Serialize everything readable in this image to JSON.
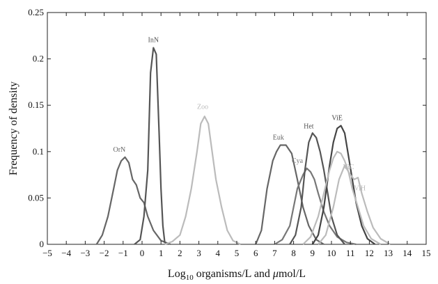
{
  "chart_data": {
    "type": "line",
    "xlabel_prefix": "Log",
    "xlabel_subscript": "10",
    "xlabel_suffix": " organisms/L and ",
    "xlabel_mu": "μ",
    "xlabel_unit": "mol/L",
    "ylabel": "Frequency of density",
    "xlim": [
      -5,
      15
    ],
    "ylim": [
      0,
      0.25
    ],
    "xticks": [
      -5,
      -4,
      -3,
      -2,
      -1,
      0,
      1,
      2,
      3,
      4,
      5,
      6,
      7,
      8,
      9,
      10,
      11,
      12,
      13,
      14,
      15
    ],
    "yticks": [
      0,
      0.05,
      0.1,
      0.15,
      0.2,
      0.25
    ],
    "ytick_labels": [
      "0",
      "0.05",
      "0.1",
      "0.15",
      "0.2",
      "0.25"
    ],
    "grid": false,
    "series": [
      {
        "name": "OrN",
        "color": "#666666",
        "label_x": -1.2,
        "label_y": 0.1,
        "x": [
          -2.4,
          -2.1,
          -1.8,
          -1.5,
          -1.3,
          -1.1,
          -0.9,
          -0.7,
          -0.5,
          -0.3,
          -0.1,
          0.1,
          0.3,
          0.6,
          1.0,
          1.5
        ],
        "y": [
          0.0,
          0.01,
          0.03,
          0.06,
          0.08,
          0.09,
          0.094,
          0.088,
          0.07,
          0.064,
          0.05,
          0.045,
          0.03,
          0.015,
          0.004,
          0.0
        ]
      },
      {
        "name": "InN",
        "color": "#555555",
        "label_x": 0.6,
        "label_y": 0.218,
        "x": [
          -0.4,
          -0.1,
          0.1,
          0.3,
          0.45,
          0.6,
          0.75,
          0.9,
          1.0,
          1.1,
          1.2,
          1.4
        ],
        "y": [
          0.0,
          0.005,
          0.03,
          0.08,
          0.185,
          0.212,
          0.205,
          0.12,
          0.06,
          0.02,
          0.002,
          0.0
        ]
      },
      {
        "name": "Zoo",
        "color": "#bbbbbb",
        "label_x": 3.2,
        "label_y": 0.146,
        "x": [
          1.2,
          1.6,
          2.0,
          2.3,
          2.6,
          2.9,
          3.1,
          3.3,
          3.5,
          3.7,
          3.9,
          4.2,
          4.5,
          4.8,
          5.2
        ],
        "y": [
          0.0,
          0.003,
          0.01,
          0.03,
          0.06,
          0.1,
          0.13,
          0.138,
          0.13,
          0.1,
          0.07,
          0.04,
          0.015,
          0.004,
          0.0
        ]
      },
      {
        "name": "Euk",
        "color": "#666666",
        "label_x": 7.2,
        "label_y": 0.113,
        "x": [
          6.0,
          6.3,
          6.6,
          6.9,
          7.1,
          7.3,
          7.6,
          7.9,
          8.2,
          8.5,
          8.8,
          9.2,
          9.6
        ],
        "y": [
          0.0,
          0.015,
          0.06,
          0.09,
          0.1,
          0.107,
          0.107,
          0.098,
          0.07,
          0.04,
          0.02,
          0.005,
          0.0
        ]
      },
      {
        "name": "Cya",
        "color": "#777777",
        "label_x": 8.2,
        "label_y": 0.088,
        "x": [
          7.0,
          7.4,
          7.8,
          8.0,
          8.2,
          8.5,
          8.7,
          8.9,
          9.1,
          9.3,
          9.6,
          9.9,
          10.3,
          10.8,
          11.3
        ],
        "y": [
          0.0,
          0.005,
          0.02,
          0.04,
          0.06,
          0.075,
          0.082,
          0.078,
          0.07,
          0.055,
          0.035,
          0.02,
          0.008,
          0.002,
          0.0
        ]
      },
      {
        "name": "Het",
        "color": "#555555",
        "label_x": 8.8,
        "label_y": 0.125,
        "x": [
          7.8,
          8.1,
          8.4,
          8.6,
          8.8,
          9.0,
          9.2,
          9.4,
          9.6,
          9.8,
          10.0,
          10.3,
          10.7
        ],
        "y": [
          0.0,
          0.01,
          0.04,
          0.08,
          0.11,
          0.12,
          0.115,
          0.1,
          0.08,
          0.055,
          0.03,
          0.01,
          0.0
        ]
      },
      {
        "name": "ViE",
        "color": "#444444",
        "label_x": 10.3,
        "label_y": 0.134,
        "x": [
          9.0,
          9.3,
          9.6,
          9.9,
          10.1,
          10.3,
          10.5,
          10.7,
          10.9,
          11.1,
          11.3,
          11.6,
          11.9,
          12.3
        ],
        "y": [
          0.0,
          0.01,
          0.04,
          0.085,
          0.11,
          0.125,
          0.128,
          0.12,
          0.095,
          0.07,
          0.045,
          0.02,
          0.006,
          0.0
        ]
      },
      {
        "name": "ViC",
        "color": "#bbbbbb",
        "label_x": 10.9,
        "label_y": 0.081,
        "x": [
          8.5,
          8.9,
          9.3,
          9.6,
          9.9,
          10.1,
          10.3,
          10.5,
          10.7,
          10.9,
          11.1,
          11.4,
          11.7,
          12.1,
          12.6
        ],
        "y": [
          0.0,
          0.008,
          0.03,
          0.055,
          0.08,
          0.093,
          0.1,
          0.098,
          0.09,
          0.078,
          0.06,
          0.04,
          0.02,
          0.006,
          0.0
        ]
      },
      {
        "name": "ViH",
        "color": "#bbbbbb",
        "label_x": 11.5,
        "label_y": 0.058,
        "x": [
          9.3,
          9.7,
          10.1,
          10.4,
          10.7,
          11.0,
          11.2,
          11.4,
          11.6,
          11.9,
          12.2,
          12.6,
          13.1
        ],
        "y": [
          0.0,
          0.01,
          0.04,
          0.07,
          0.085,
          0.075,
          0.07,
          0.072,
          0.055,
          0.035,
          0.018,
          0.006,
          0.0
        ]
      }
    ]
  }
}
